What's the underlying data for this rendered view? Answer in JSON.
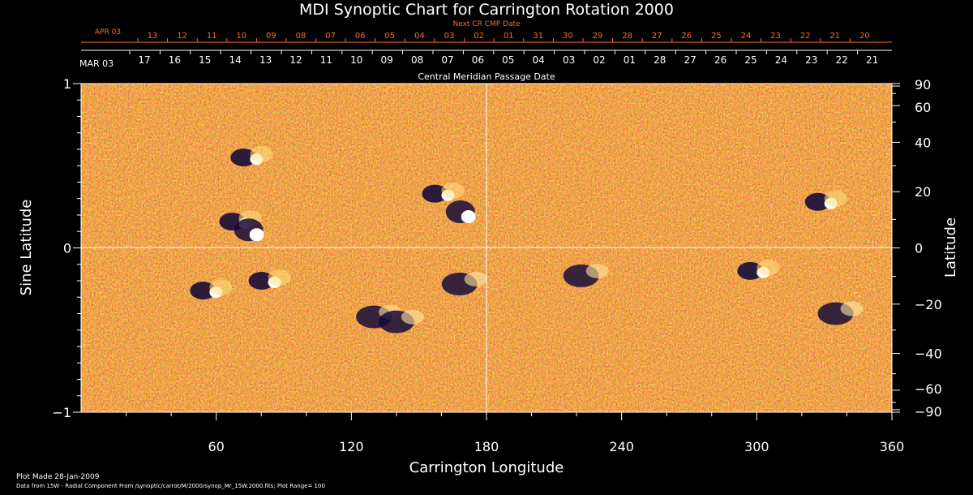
{
  "chart_data": {
    "type": "heatmap",
    "title": "MDI Synoptic Chart for Carrington Rotation 2000",
    "next_cr_label": "Next CR CMP Date",
    "next_cr_month": "APR 03",
    "next_cr_dates": [
      "13",
      "12",
      "11",
      "10",
      "09",
      "08",
      "07",
      "06",
      "05",
      "04",
      "03",
      "02",
      "01",
      "31",
      "30",
      "29",
      "28",
      "27",
      "26",
      "25",
      "24",
      "23",
      "22",
      "21",
      "20"
    ],
    "cmp_month": "MAR 03",
    "cmp_dates": [
      "17",
      "16",
      "15",
      "14",
      "13",
      "12",
      "11",
      "10",
      "09",
      "08",
      "07",
      "06",
      "05",
      "04",
      "03",
      "02",
      "01",
      "28",
      "27",
      "26",
      "25",
      "24",
      "23",
      "22",
      "21"
    ],
    "cmp_label": "Central Meridian Passage Date",
    "xlabel": "Carrington Longitude",
    "ylabel_left": "Sine Latitude",
    "ylabel_right": "Latitude",
    "xlim": [
      0,
      360
    ],
    "ylim": [
      -1,
      1
    ],
    "x_ticks": [
      "60",
      "120",
      "180",
      "240",
      "300",
      "360"
    ],
    "x_tick_values": [
      60,
      120,
      180,
      240,
      300,
      360
    ],
    "y_left_ticks": [
      "1",
      "0",
      "−1"
    ],
    "y_left_values": [
      1,
      0,
      -1
    ],
    "y_right_ticks": [
      "90",
      "60",
      "40",
      "20",
      "0",
      "−20",
      "−40",
      "−60",
      "−90"
    ],
    "y_right_values": [
      90,
      60,
      40,
      20,
      0,
      -20,
      -40,
      -60,
      -90
    ],
    "colorscale": [
      "#1a1040",
      "#b83a08",
      "#ff6a1c",
      "#ffd060",
      "#ffffff"
    ],
    "footer_line1": "Plot Made 28-Jan-2009",
    "footer_line2": "Data from 15W - Radial Component From /synoptic/carrot/M/2000/synop_Mr_15W.2000.fits; Plot Range=  100",
    "active_regions": [
      {
        "lon": 70,
        "slat": 0.16,
        "kind": "bipole"
      },
      {
        "lon": 78,
        "slat": 0.08,
        "kind": "positive"
      },
      {
        "lon": 75,
        "slat": 0.55,
        "kind": "bipole"
      },
      {
        "lon": 160,
        "slat": 0.33,
        "kind": "bipole"
      },
      {
        "lon": 172,
        "slat": 0.19,
        "kind": "positive"
      },
      {
        "lon": 330,
        "slat": 0.28,
        "kind": "bipole"
      },
      {
        "lon": 57,
        "slat": -0.26,
        "kind": "bipole"
      },
      {
        "lon": 83,
        "slat": -0.2,
        "kind": "bipole"
      },
      {
        "lon": 168,
        "slat": -0.22,
        "kind": "negative"
      },
      {
        "lon": 130,
        "slat": -0.42,
        "kind": "negative"
      },
      {
        "lon": 140,
        "slat": -0.45,
        "kind": "negative"
      },
      {
        "lon": 222,
        "slat": -0.17,
        "kind": "negative"
      },
      {
        "lon": 300,
        "slat": -0.14,
        "kind": "bipole"
      },
      {
        "lon": 335,
        "slat": -0.4,
        "kind": "negative"
      }
    ]
  }
}
